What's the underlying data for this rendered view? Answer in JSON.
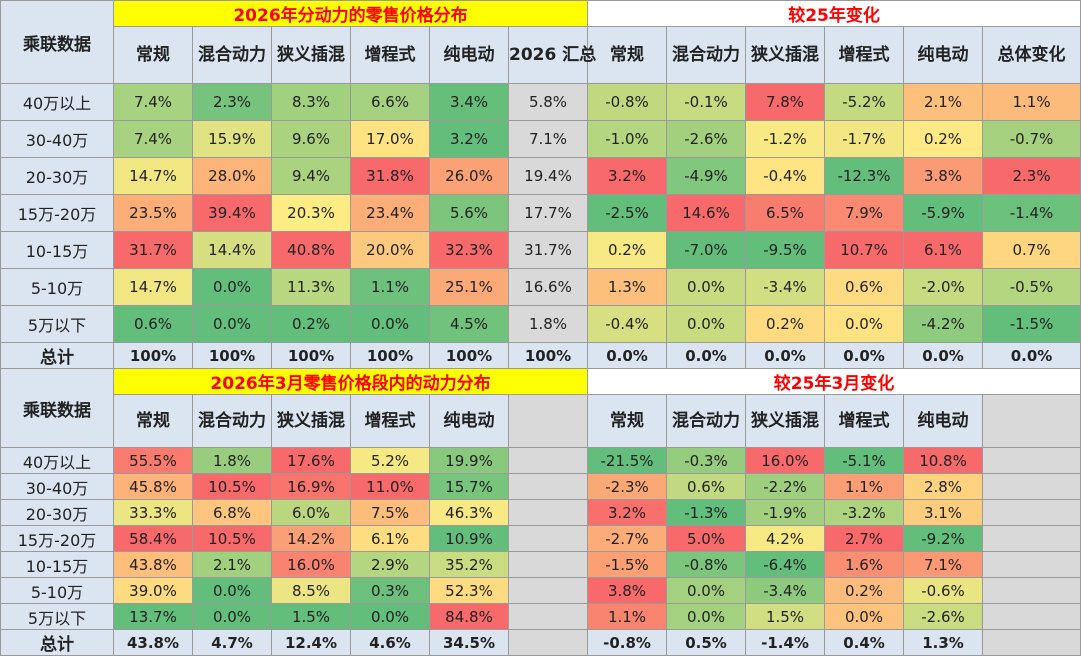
{
  "row_label": "乘联数据",
  "total_label": "总计",
  "colors": {
    "header_bg": "#dbe5f1",
    "title_bg": "#ffff00",
    "title_text": "#ff0000",
    "sum_col_bg": "#d9d9d9",
    "scale_low": "#63be7b",
    "scale_mid": "#ffeb84",
    "scale_high": "#f8696b"
  },
  "row_labels": [
    "40万以上",
    "30-40万",
    "20-30万",
    "15万-20万",
    "10-15万",
    "5-10万",
    "5万以下"
  ],
  "section1": {
    "left_title": "2026年分动力的零售价格分布",
    "right_title": "较25年变化",
    "left_headers": [
      "常规",
      "混合动力",
      "狭义插混",
      "增程式",
      "纯电动",
      "2026 汇总"
    ],
    "right_headers": [
      "常规",
      "混合动力",
      "狭义插混",
      "增程式",
      "纯电动",
      "总体变化"
    ],
    "left_rows": [
      [
        "7.4%",
        "2.3%",
        "8.3%",
        "6.6%",
        "3.4%",
        "5.8%"
      ],
      [
        "7.4%",
        "15.9%",
        "9.6%",
        "17.0%",
        "3.2%",
        "7.1%"
      ],
      [
        "14.7%",
        "28.0%",
        "9.4%",
        "31.8%",
        "26.0%",
        "19.4%"
      ],
      [
        "23.5%",
        "39.4%",
        "20.3%",
        "23.4%",
        "5.6%",
        "17.7%"
      ],
      [
        "31.7%",
        "14.4%",
        "40.8%",
        "20.0%",
        "32.3%",
        "31.7%"
      ],
      [
        "14.7%",
        "0.0%",
        "11.3%",
        "1.1%",
        "25.1%",
        "16.6%"
      ],
      [
        "0.6%",
        "0.0%",
        "0.2%",
        "0.0%",
        "4.5%",
        "1.8%"
      ]
    ],
    "right_rows": [
      [
        "-0.8%",
        "-0.1%",
        "7.8%",
        "-5.2%",
        "2.1%",
        "1.1%"
      ],
      [
        "-1.0%",
        "-2.6%",
        "-1.2%",
        "-1.7%",
        "0.2%",
        "-0.7%"
      ],
      [
        "3.2%",
        "-4.9%",
        "-0.4%",
        "-12.3%",
        "3.8%",
        "2.3%"
      ],
      [
        "-2.5%",
        "14.6%",
        "6.5%",
        "7.9%",
        "-5.9%",
        "-1.4%"
      ],
      [
        "0.2%",
        "-7.0%",
        "-9.5%",
        "10.7%",
        "6.1%",
        "0.7%"
      ],
      [
        "1.3%",
        "0.0%",
        "-3.4%",
        "0.6%",
        "-2.0%",
        "-0.5%"
      ],
      [
        "-0.4%",
        "0.0%",
        "0.2%",
        "0.0%",
        "-4.2%",
        "-1.5%"
      ]
    ],
    "left_total": [
      "100%",
      "100%",
      "100%",
      "100%",
      "100%",
      "100%"
    ],
    "right_total": [
      "0.0%",
      "0.0%",
      "0.0%",
      "0.0%",
      "0.0%",
      "0.0%"
    ]
  },
  "section2": {
    "left_title": "2026年3月零售价格段内的动力分布",
    "right_title": "较25年3月变化",
    "left_headers": [
      "常规",
      "混合动力",
      "狭义插混",
      "增程式",
      "纯电动",
      ""
    ],
    "right_headers": [
      "常规",
      "混合动力",
      "狭义插混",
      "增程式",
      "纯电动",
      ""
    ],
    "left_rows": [
      [
        "55.5%",
        "1.8%",
        "17.6%",
        "5.2%",
        "19.9%"
      ],
      [
        "45.8%",
        "10.5%",
        "16.9%",
        "11.0%",
        "15.7%"
      ],
      [
        "33.3%",
        "6.8%",
        "6.0%",
        "7.5%",
        "46.3%"
      ],
      [
        "58.4%",
        "10.5%",
        "14.2%",
        "6.1%",
        "10.9%"
      ],
      [
        "43.8%",
        "2.1%",
        "16.0%",
        "2.9%",
        "35.2%"
      ],
      [
        "39.0%",
        "0.0%",
        "8.5%",
        "0.3%",
        "52.3%"
      ],
      [
        "13.7%",
        "0.0%",
        "1.5%",
        "0.0%",
        "84.8%"
      ]
    ],
    "right_rows": [
      [
        "-21.5%",
        "-0.3%",
        "16.0%",
        "-5.1%",
        "10.8%"
      ],
      [
        "-2.3%",
        "0.6%",
        "-2.2%",
        "1.1%",
        "2.8%"
      ],
      [
        "3.2%",
        "-1.3%",
        "-1.9%",
        "-3.2%",
        "3.1%"
      ],
      [
        "-2.7%",
        "5.0%",
        "4.2%",
        "2.7%",
        "-9.2%"
      ],
      [
        "-1.5%",
        "-0.8%",
        "-6.4%",
        "1.6%",
        "7.1%"
      ],
      [
        "3.8%",
        "0.0%",
        "-3.4%",
        "0.2%",
        "-0.6%"
      ],
      [
        "1.1%",
        "0.0%",
        "1.5%",
        "0.0%",
        "-2.6%"
      ]
    ],
    "left_total": [
      "43.8%",
      "4.7%",
      "12.4%",
      "4.6%",
      "34.5%"
    ],
    "right_total": [
      "-0.8%",
      "0.5%",
      "-1.4%",
      "0.4%",
      "1.3%"
    ]
  }
}
